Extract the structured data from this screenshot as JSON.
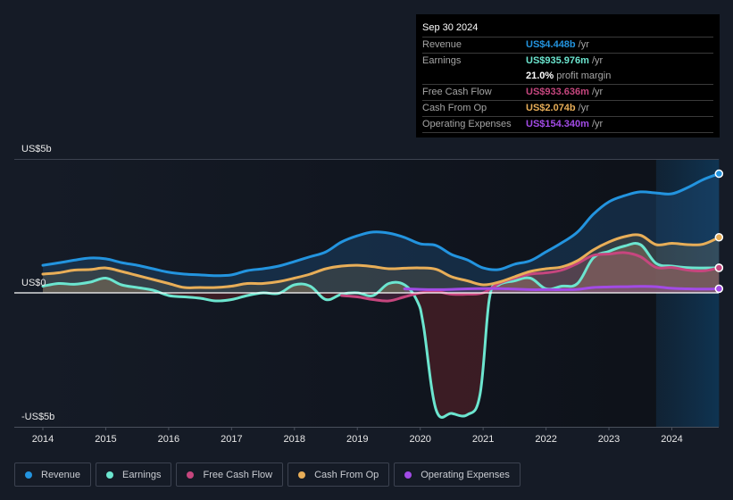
{
  "tooltip": {
    "date": "Sep 30 2024",
    "rows": [
      {
        "label": "Revenue",
        "value": "US$4.448b",
        "unit": "/yr",
        "color": "#2394df"
      },
      {
        "label": "Earnings",
        "value": "US$935.976m",
        "unit": "/yr",
        "color": "#6ce5cf"
      },
      {
        "label": "",
        "value": "21.0%",
        "unit": "profit margin",
        "color": "#ffffff"
      },
      {
        "label": "Free Cash Flow",
        "value": "US$933.636m",
        "unit": "/yr",
        "color": "#c6467e"
      },
      {
        "label": "Cash From Op",
        "value": "US$2.074b",
        "unit": "/yr",
        "color": "#e8ae58"
      },
      {
        "label": "Operating Expenses",
        "value": "US$154.340m",
        "unit": "/yr",
        "color": "#a24be6"
      }
    ]
  },
  "legend": [
    {
      "label": "Revenue",
      "color": "#2394df"
    },
    {
      "label": "Earnings",
      "color": "#6ce5cf"
    },
    {
      "label": "Free Cash Flow",
      "color": "#c6467e"
    },
    {
      "label": "Cash From Op",
      "color": "#e8ae58"
    },
    {
      "label": "Operating Expenses",
      "color": "#a24be6"
    }
  ],
  "chart_data": {
    "type": "area",
    "title": "",
    "xlabel": "",
    "ylabel": "",
    "y_tick_labels": [
      "US$5b",
      "US$0",
      "-US$5b"
    ],
    "y_ticks": [
      5,
      0,
      -5
    ],
    "ylim": [
      -5,
      5
    ],
    "xlim": [
      2013.75,
      2024.75
    ],
    "x_tick_labels": [
      "2014",
      "2015",
      "2016",
      "2017",
      "2018",
      "2019",
      "2020",
      "2021",
      "2022",
      "2023",
      "2024"
    ],
    "x_ticks": [
      2014,
      2015,
      2016,
      2017,
      2018,
      2019,
      2020,
      2021,
      2022,
      2023,
      2024
    ],
    "highlight_region": [
      2023.75,
      2024.75
    ],
    "unit": "US$ billions per year",
    "series": [
      {
        "name": "Revenue",
        "color": "#2394df",
        "x": [
          2014.0,
          2014.25,
          2014.5,
          2014.75,
          2015.0,
          2015.25,
          2015.5,
          2015.75,
          2016.0,
          2016.25,
          2016.5,
          2016.75,
          2017.0,
          2017.25,
          2017.5,
          2017.75,
          2018.0,
          2018.25,
          2018.5,
          2018.75,
          2019.0,
          2019.25,
          2019.5,
          2019.75,
          2020.0,
          2020.25,
          2020.5,
          2020.75,
          2021.0,
          2021.25,
          2021.5,
          2021.75,
          2022.0,
          2022.25,
          2022.5,
          2022.75,
          2023.0,
          2023.25,
          2023.5,
          2023.75,
          2024.0,
          2024.25,
          2024.5,
          2024.75
        ],
        "values": [
          1.03,
          1.12,
          1.22,
          1.3,
          1.27,
          1.13,
          1.03,
          0.9,
          0.77,
          0.7,
          0.67,
          0.64,
          0.67,
          0.83,
          0.9,
          1.0,
          1.17,
          1.35,
          1.53,
          1.9,
          2.13,
          2.27,
          2.23,
          2.07,
          1.83,
          1.77,
          1.43,
          1.23,
          0.93,
          0.87,
          1.07,
          1.2,
          1.53,
          1.87,
          2.27,
          2.93,
          3.4,
          3.63,
          3.77,
          3.73,
          3.7,
          3.93,
          4.23,
          4.448
        ]
      },
      {
        "name": "Earnings",
        "color": "#6ce5cf",
        "x": [
          2014.0,
          2014.25,
          2014.5,
          2014.75,
          2015.0,
          2015.25,
          2015.5,
          2015.75,
          2016.0,
          2016.25,
          2016.5,
          2016.75,
          2017.0,
          2017.25,
          2017.5,
          2017.75,
          2018.0,
          2018.25,
          2018.5,
          2018.75,
          2019.0,
          2019.25,
          2019.5,
          2019.75,
          2019.95,
          2020.05,
          2020.25,
          2020.5,
          2020.75,
          2020.95,
          2021.1,
          2021.25,
          2021.5,
          2021.75,
          2022.0,
          2022.25,
          2022.5,
          2022.75,
          2023.0,
          2023.25,
          2023.5,
          2023.75,
          2024.0,
          2024.25,
          2024.5,
          2024.75
        ],
        "values": [
          0.25,
          0.35,
          0.32,
          0.4,
          0.55,
          0.3,
          0.2,
          0.1,
          -0.1,
          -0.15,
          -0.2,
          -0.3,
          -0.25,
          -0.1,
          0.0,
          -0.02,
          0.3,
          0.25,
          -0.25,
          -0.05,
          0.0,
          -0.1,
          0.35,
          0.3,
          -0.3,
          -1.2,
          -4.35,
          -4.5,
          -4.55,
          -3.8,
          -0.2,
          0.3,
          0.45,
          0.55,
          0.15,
          0.25,
          0.35,
          1.3,
          1.55,
          1.75,
          1.8,
          1.1,
          1.0,
          0.94,
          0.93,
          0.936
        ]
      },
      {
        "name": "Free Cash Flow",
        "color": "#c6467e",
        "x": [
          2018.75,
          2019.0,
          2019.25,
          2019.5,
          2019.75,
          2020.0,
          2020.25,
          2020.5,
          2020.75,
          2021.0,
          2021.25,
          2021.5,
          2021.75,
          2022.0,
          2022.25,
          2022.5,
          2022.75,
          2023.0,
          2023.25,
          2023.5,
          2023.75,
          2024.0,
          2024.25,
          2024.5,
          2024.75
        ],
        "values": [
          -0.1,
          -0.15,
          -0.25,
          -0.3,
          -0.15,
          0.0,
          0.05,
          -0.05,
          -0.05,
          0.0,
          0.35,
          0.55,
          0.7,
          0.75,
          0.85,
          1.1,
          1.4,
          1.45,
          1.5,
          1.35,
          0.95,
          0.95,
          0.85,
          0.82,
          0.934
        ]
      },
      {
        "name": "Cash From Op",
        "color": "#e8ae58",
        "x": [
          2014.0,
          2014.25,
          2014.5,
          2014.75,
          2015.0,
          2015.25,
          2015.5,
          2015.75,
          2016.0,
          2016.25,
          2016.5,
          2016.75,
          2017.0,
          2017.25,
          2017.5,
          2017.75,
          2018.0,
          2018.25,
          2018.5,
          2018.75,
          2019.0,
          2019.25,
          2019.5,
          2019.75,
          2020.0,
          2020.25,
          2020.5,
          2020.75,
          2021.0,
          2021.25,
          2021.5,
          2021.75,
          2022.0,
          2022.25,
          2022.5,
          2022.75,
          2023.0,
          2023.25,
          2023.5,
          2023.75,
          2024.0,
          2024.25,
          2024.5,
          2024.75
        ],
        "values": [
          0.7,
          0.75,
          0.85,
          0.87,
          0.93,
          0.8,
          0.65,
          0.5,
          0.35,
          0.2,
          0.2,
          0.2,
          0.25,
          0.35,
          0.35,
          0.42,
          0.55,
          0.7,
          0.9,
          1.0,
          1.03,
          0.98,
          0.9,
          0.92,
          0.93,
          0.88,
          0.6,
          0.45,
          0.3,
          0.4,
          0.6,
          0.8,
          0.9,
          0.97,
          1.2,
          1.6,
          1.9,
          2.1,
          2.15,
          1.8,
          1.85,
          1.8,
          1.82,
          2.074
        ]
      },
      {
        "name": "Operating Expenses",
        "color": "#a24be6",
        "x": [
          2019.75,
          2020.0,
          2020.25,
          2020.5,
          2020.75,
          2021.0,
          2021.25,
          2021.5,
          2021.75,
          2022.0,
          2022.25,
          2022.5,
          2022.75,
          2023.0,
          2023.25,
          2023.5,
          2023.75,
          2024.0,
          2024.25,
          2024.5,
          2024.75
        ],
        "values": [
          0.15,
          0.13,
          0.12,
          0.13,
          0.15,
          0.16,
          0.16,
          0.14,
          0.12,
          0.12,
          0.12,
          0.13,
          0.2,
          0.22,
          0.23,
          0.24,
          0.23,
          0.17,
          0.15,
          0.14,
          0.154
        ]
      }
    ]
  }
}
